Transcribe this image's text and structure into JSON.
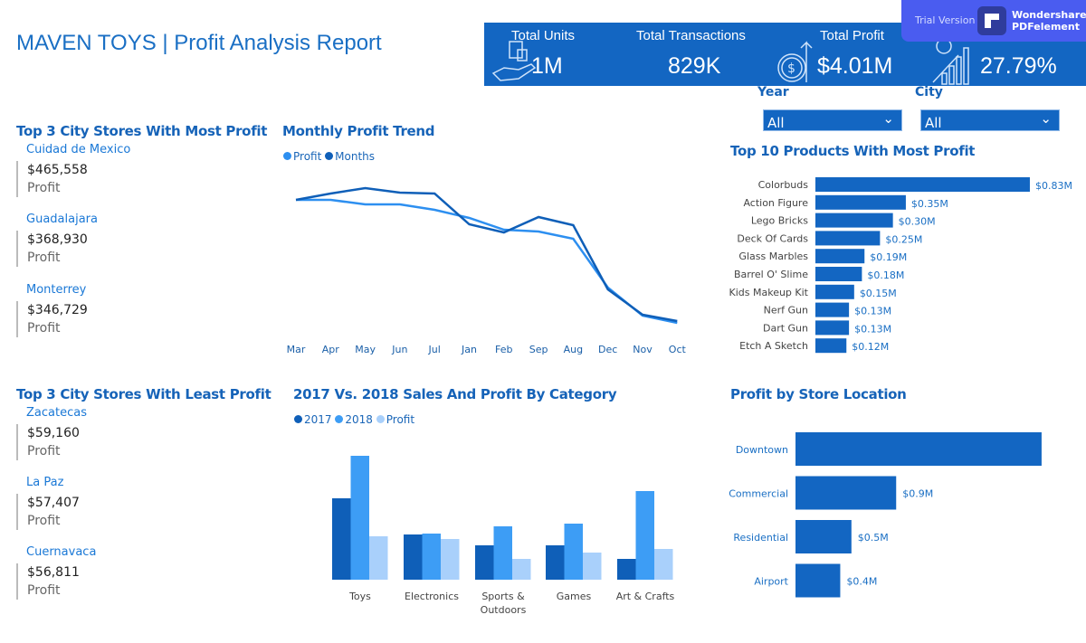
{
  "title": "MAVEN TOYS | Profit Analysis Report",
  "kpis": [
    {
      "label": "Total Units",
      "value": "1M",
      "icon": "shopping-hand-icon"
    },
    {
      "label": "Total Transactions",
      "value": "829K",
      "icon": ""
    },
    {
      "label": "Total Profit",
      "value": "$4.01M",
      "icon": "dollar-growth-icon"
    },
    {
      "label": "",
      "value": "27.79%",
      "icon": "growth-chart-icon"
    }
  ],
  "watermark": {
    "trial": "Trial Version",
    "brand1": "Wondershare",
    "brand2": "PDFelement"
  },
  "filters": {
    "year_label": "Year",
    "year_value": "All",
    "city_label": "City",
    "city_value": "All"
  },
  "top_cities": {
    "title": "Top 3 City Stores With Most Profit",
    "items": [
      {
        "name": "Cuidad de Mexico",
        "value": "$465,558",
        "label": "Profit"
      },
      {
        "name": "Guadalajara",
        "value": "$368,930",
        "label": "Profit"
      },
      {
        "name": "Monterrey",
        "value": "$346,729",
        "label": "Profit"
      }
    ]
  },
  "least_cities": {
    "title": "Top 3 City Stores With Least Profit",
    "items": [
      {
        "name": "Zacatecas",
        "value": "$59,160",
        "label": "Profit"
      },
      {
        "name": "La Paz",
        "value": "$57,407",
        "label": "Profit"
      },
      {
        "name": "Cuernavaca",
        "value": "$56,811",
        "label": "Profit"
      }
    ]
  },
  "colors": {
    "primary": "#1366c2",
    "light_line": "#2d8ff0",
    "y2017": "#0f5fb8",
    "y2018": "#3d9df5",
    "profit": "#a9d0fb"
  },
  "chart_data": [
    {
      "type": "line",
      "title": "Monthly Profit Trend",
      "categories": [
        "Mar",
        "Apr",
        "May",
        "Jun",
        "Jul",
        "Jan",
        "Feb",
        "Sep",
        "Aug",
        "Dec",
        "Nov",
        "Oct"
      ],
      "series": [
        {
          "name": "Profit",
          "values": [
            159,
            159,
            154,
            154,
            148,
            139,
            126,
            124,
            116,
            62,
            31,
            23
          ]
        },
        {
          "name": "Months",
          "values": [
            159,
            166,
            172,
            167,
            166,
            132,
            123,
            140,
            131,
            60,
            32,
            25
          ]
        }
      ],
      "yaxis_visible": false,
      "grid": false,
      "legend": "top-left"
    },
    {
      "type": "bar",
      "orientation": "horizontal",
      "title": "Top 10 Products With Most Profit",
      "categories": [
        "Colorbuds",
        "Action Figure",
        "Lego Bricks",
        "Deck Of Cards",
        "Glass Marbles",
        "Barrel O' Slime",
        "Kids Makeup Kit",
        "Nerf Gun",
        "Dart Gun",
        "Etch A Sketch"
      ],
      "values": [
        0.83,
        0.35,
        0.3,
        0.25,
        0.19,
        0.18,
        0.15,
        0.13,
        0.13,
        0.12
      ],
      "labels": [
        "$0.83M",
        "$0.35M",
        "$0.30M",
        "$0.25M",
        "$0.19M",
        "$0.18M",
        "$0.15M",
        "$0.13M",
        "$0.13M",
        "$0.12M"
      ]
    },
    {
      "type": "bar",
      "title": "2017 Vs. 2018 Sales And Profit By Category",
      "categories": [
        "Toys",
        "Electronics",
        "Sports & Outdoors",
        "Games",
        "Art & Crafts"
      ],
      "series": [
        {
          "name": "2017",
          "values": [
            90,
            50,
            38,
            38,
            23
          ]
        },
        {
          "name": "2018",
          "values": [
            137,
            51,
            59,
            62,
            98
          ]
        },
        {
          "name": "Profit",
          "values": [
            48,
            45,
            23,
            30,
            34
          ]
        }
      ],
      "yaxis_visible": false,
      "legend": "top-left"
    },
    {
      "type": "bar",
      "orientation": "horizontal",
      "title": "Profit by Store Location",
      "categories": [
        "Downtown",
        "Commercial",
        "Residential",
        "Airport"
      ],
      "values": [
        2.2,
        0.9,
        0.5,
        0.4
      ],
      "labels": [
        "",
        "$0.9M",
        "$0.5M",
        "$0.4M"
      ]
    }
  ]
}
